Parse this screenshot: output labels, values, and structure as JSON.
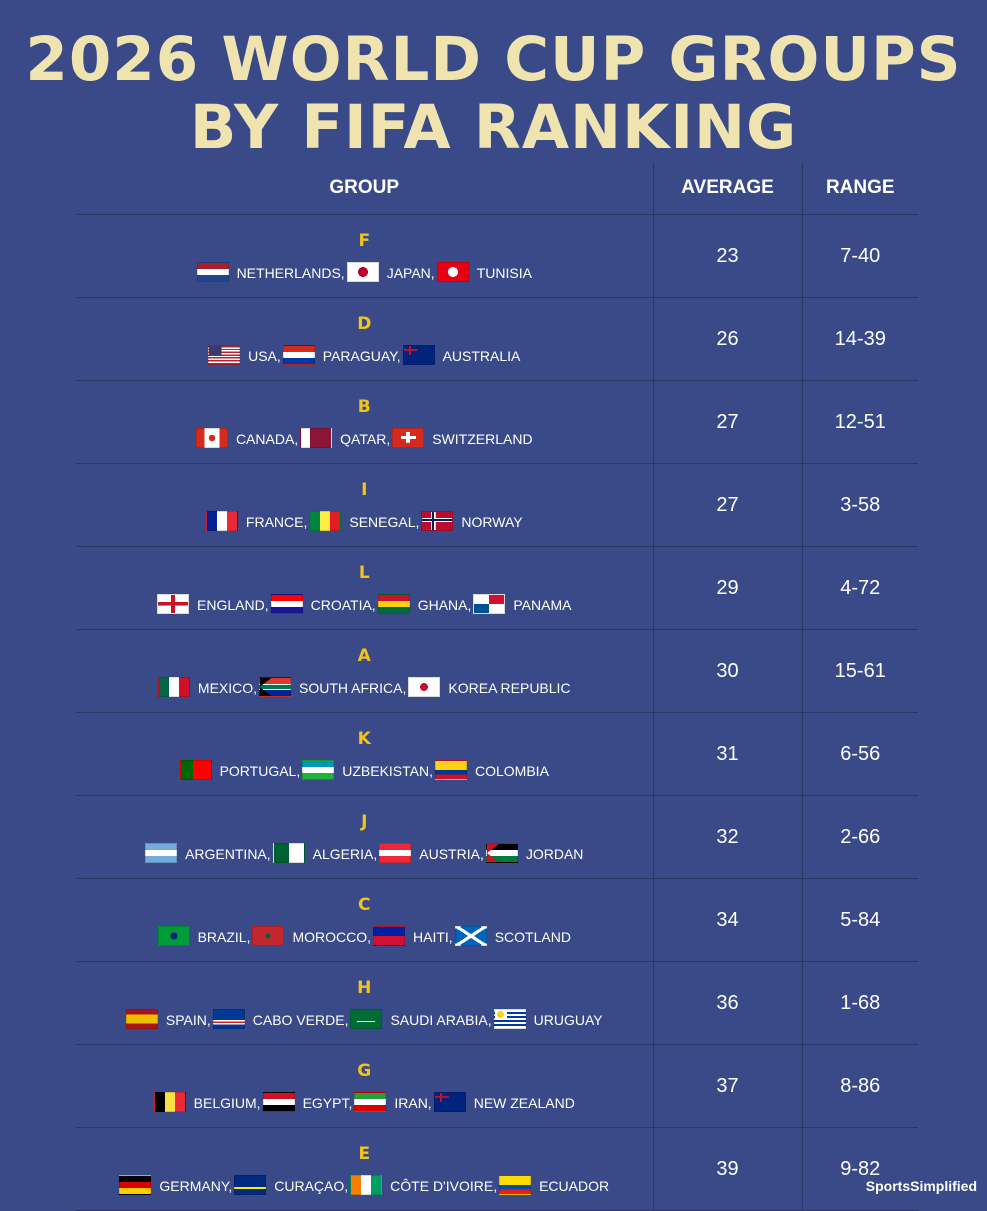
{
  "title_line1": "2026 WORLD CUP GROUPS",
  "title_line2": "BY FIFA RANKING",
  "columns": {
    "group": "GROUP",
    "average": "AVERAGE",
    "range": "RANGE"
  },
  "watermark": "SportsSimplified",
  "groups": [
    {
      "letter": "F",
      "average": "23",
      "range": "7-40",
      "teams": [
        {
          "name": "NETHERLANDS,",
          "flag": "nl"
        },
        {
          "name": "JAPAN,",
          "flag": "jp"
        },
        {
          "name": "TUNISIA",
          "flag": "tn"
        }
      ]
    },
    {
      "letter": "D",
      "average": "26",
      "range": "14-39",
      "teams": [
        {
          "name": "USA,",
          "flag": "us"
        },
        {
          "name": "PARAGUAY,",
          "flag": "py"
        },
        {
          "name": "AUSTRALIA",
          "flag": "au"
        }
      ]
    },
    {
      "letter": "B",
      "average": "27",
      "range": "12-51",
      "teams": [
        {
          "name": "CANADA,",
          "flag": "ca"
        },
        {
          "name": "QATAR,",
          "flag": "qa"
        },
        {
          "name": "SWITZERLAND",
          "flag": "ch"
        }
      ]
    },
    {
      "letter": "I",
      "average": "27",
      "range": "3-58",
      "teams": [
        {
          "name": "FRANCE,",
          "flag": "fr"
        },
        {
          "name": "SENEGAL,",
          "flag": "sn"
        },
        {
          "name": "NORWAY",
          "flag": "no"
        }
      ]
    },
    {
      "letter": "L",
      "average": "29",
      "range": "4-72",
      "teams": [
        {
          "name": "ENGLAND,",
          "flag": "en"
        },
        {
          "name": "CROATIA,",
          "flag": "hr"
        },
        {
          "name": "GHANA,",
          "flag": "gh"
        },
        {
          "name": "PANAMA",
          "flag": "pa"
        }
      ]
    },
    {
      "letter": "A",
      "average": "30",
      "range": "15-61",
      "teams": [
        {
          "name": "MEXICO,",
          "flag": "mx"
        },
        {
          "name": "SOUTH AFRICA,",
          "flag": "za"
        },
        {
          "name": "KOREA REPUBLIC",
          "flag": "kr"
        }
      ]
    },
    {
      "letter": "K",
      "average": "31",
      "range": "6-56",
      "teams": [
        {
          "name": "PORTUGAL,",
          "flag": "pt"
        },
        {
          "name": "UZBEKISTAN,",
          "flag": "uz"
        },
        {
          "name": "COLOMBIA",
          "flag": "co"
        }
      ]
    },
    {
      "letter": "J",
      "average": "32",
      "range": "2-66",
      "teams": [
        {
          "name": "ARGENTINA,",
          "flag": "ar"
        },
        {
          "name": "ALGERIA,",
          "flag": "dz"
        },
        {
          "name": "AUSTRIA,",
          "flag": "at"
        },
        {
          "name": "JORDAN",
          "flag": "jo"
        }
      ]
    },
    {
      "letter": "C",
      "average": "34",
      "range": "5-84",
      "teams": [
        {
          "name": "BRAZIL,",
          "flag": "br"
        },
        {
          "name": "MOROCCO,",
          "flag": "ma"
        },
        {
          "name": "HAITI,",
          "flag": "ht"
        },
        {
          "name": "SCOTLAND",
          "flag": "sc"
        }
      ]
    },
    {
      "letter": "H",
      "average": "36",
      "range": "1-68",
      "teams": [
        {
          "name": "SPAIN,",
          "flag": "es"
        },
        {
          "name": "CABO VERDE,",
          "flag": "cv"
        },
        {
          "name": "SAUDI ARABIA,",
          "flag": "sa"
        },
        {
          "name": "URUGUAY",
          "flag": "uy"
        }
      ]
    },
    {
      "letter": "G",
      "average": "37",
      "range": "8-86",
      "teams": [
        {
          "name": "BELGIUM,",
          "flag": "be"
        },
        {
          "name": "EGYPT,",
          "flag": "eg"
        },
        {
          "name": "IRAN,",
          "flag": "ir"
        },
        {
          "name": "NEW ZEALAND",
          "flag": "nz"
        }
      ]
    },
    {
      "letter": "E",
      "average": "39",
      "range": "9-82",
      "teams": [
        {
          "name": "GERMANY,",
          "flag": "de"
        },
        {
          "name": "CURAÇAO,",
          "flag": "cw"
        },
        {
          "name": "CÔTE D'IVOIRE,",
          "flag": "ci"
        },
        {
          "name": "ECUADOR",
          "flag": "ec"
        }
      ]
    }
  ]
}
